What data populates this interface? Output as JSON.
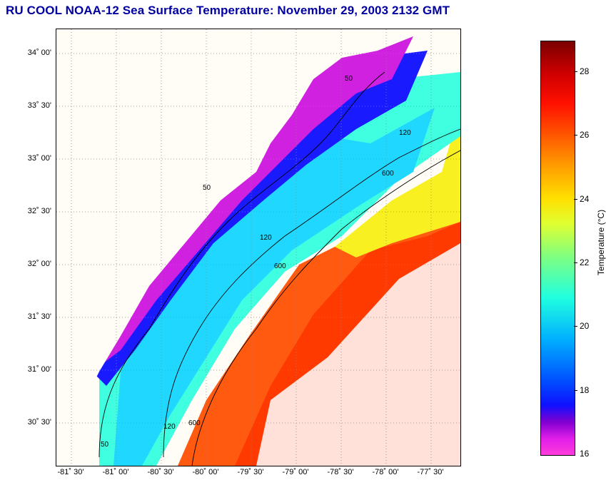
{
  "title": "RU COOL  NOAA-12  Sea Surface Temperature:  November 29, 2003 2132 GMT",
  "map": {
    "lat_labels": [
      "34˚ 00'",
      "33˚ 30'",
      "33˚ 00'",
      "32˚ 30'",
      "32˚ 00'",
      "31˚ 30'",
      "31˚ 00'",
      "30˚ 30'"
    ],
    "lon_labels": [
      "-81˚ 30'",
      "-81˚ 00'",
      "-80˚ 30'",
      "-80˚ 00'",
      "-79˚ 30'",
      "-79˚ 00'",
      "-78˚ 30'",
      "-78˚ 00'",
      "-77˚ 30'"
    ],
    "isobath_labels": [
      "50",
      "120",
      "600"
    ]
  },
  "colorbar": {
    "title": "Temperature (°C)",
    "tick_labels": [
      "28",
      "26",
      "24",
      "22",
      "20",
      "18",
      "16"
    ],
    "range": [
      16,
      29
    ]
  },
  "colors": {
    "title": "#0000a0",
    "land": "#fffdf5",
    "grid": "#888888"
  }
}
